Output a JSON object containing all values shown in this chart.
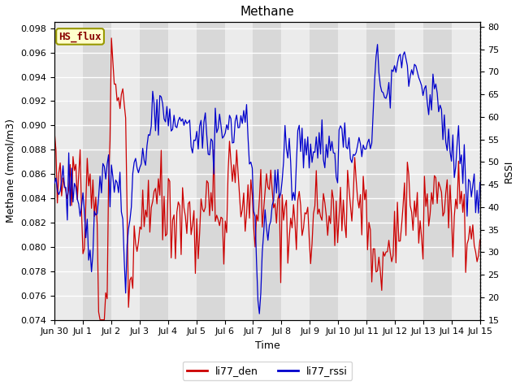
{
  "title": "Methane",
  "ylabel_left": "Methane (mmol/m3)",
  "ylabel_right": "RSSI",
  "xlabel": "Time",
  "ylim_left": [
    0.074,
    0.0985
  ],
  "ylim_right": [
    15,
    81
  ],
  "yticks_left": [
    0.074,
    0.076,
    0.078,
    0.08,
    0.082,
    0.084,
    0.086,
    0.088,
    0.09,
    0.092,
    0.094,
    0.096,
    0.098
  ],
  "yticks_right": [
    15,
    20,
    25,
    30,
    35,
    40,
    45,
    50,
    55,
    60,
    65,
    70,
    75,
    80
  ],
  "xtick_labels": [
    "Jun 30",
    "Jul 1",
    "Jul 2",
    "Jul 3",
    "Jul 4",
    "Jul 5",
    "Jul 6",
    "Jul 7",
    "Jul 8",
    "Jul 9",
    "Jul 10",
    "Jul 11",
    "Jul 12",
    "Jul 13",
    "Jul 14",
    "Jul 15"
  ],
  "legend_labels": [
    "li77_den",
    "li77_rssi"
  ],
  "line_colors": [
    "#cc0000",
    "#0000cc"
  ],
  "annotation_text": "HS_flux",
  "annotation_color": "#880000",
  "annotation_bg": "#ffffcc",
  "annotation_border": "#999900",
  "plot_bg_light": "#ebebeb",
  "plot_bg_dark": "#d8d8d8",
  "fig_bg": "#ffffff",
  "grid_color": "#ffffff",
  "title_fontsize": 11,
  "label_fontsize": 9,
  "tick_fontsize": 8,
  "n_points": 300,
  "seed": 10
}
